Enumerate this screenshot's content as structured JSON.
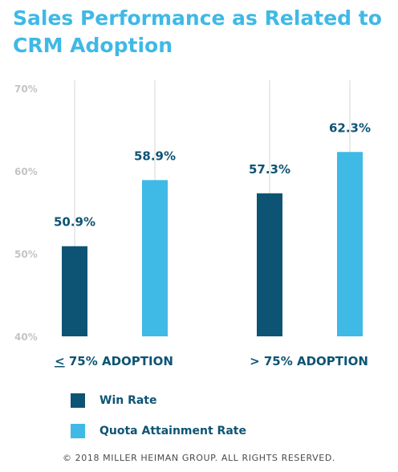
{
  "title": "Sales Performance as Related to CRM Adoption",
  "footer": "© 2018 MILLER HEIMAN GROUP. ALL RIGHTS RESERVED.",
  "colors": {
    "win_rate": "#0d5474",
    "quota_rate": "#3fb9e6",
    "title": "#3fb9e6",
    "tick": "#c4c4c4",
    "label": "#0d5474"
  },
  "chart_data": {
    "type": "bar",
    "categories": [
      {
        "prefix": "<",
        "prefix_underlined": true,
        "text": " 75% ADOPTION"
      },
      {
        "prefix": ">",
        "prefix_underlined": false,
        "text": " 75% ADOPTION"
      }
    ],
    "series": [
      {
        "name": "Win Rate",
        "values": [
          50.9,
          57.3
        ],
        "labels": [
          "50.9%",
          "57.3%"
        ],
        "color": "#0d5474"
      },
      {
        "name": "Quota Attainment Rate",
        "values": [
          58.9,
          62.3
        ],
        "labels": [
          "58.9%",
          "62.3%"
        ],
        "color": "#3fb9e6"
      }
    ],
    "ylim": [
      40,
      70
    ],
    "yticks": [
      {
        "value": 40,
        "label": "40%"
      },
      {
        "value": 50,
        "label": "50%"
      },
      {
        "value": 60,
        "label": "60%"
      },
      {
        "value": 70,
        "label": "70%"
      }
    ],
    "grid": false,
    "legend_position": "bottom-left",
    "data_labels": true
  }
}
